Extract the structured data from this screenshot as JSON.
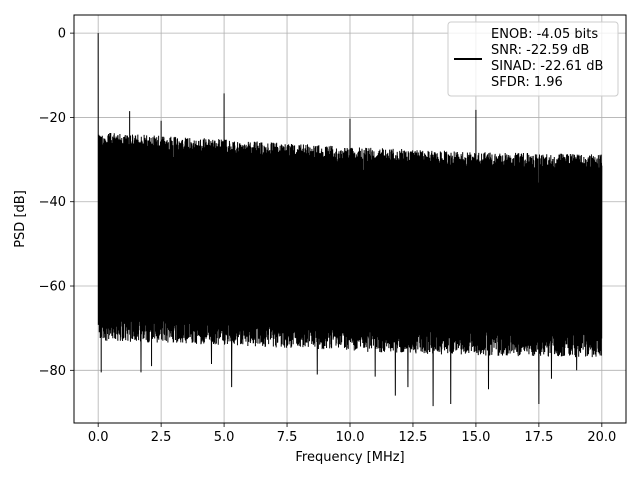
{
  "chart_data": {
    "type": "line",
    "xlabel": "Frequency [MHz]",
    "ylabel": "PSD [dB]",
    "xlim": [
      -0.96,
      20.96
    ],
    "ylim": [
      -92.5,
      4.3
    ],
    "x_ticks": [
      0.0,
      2.5,
      5.0,
      7.5,
      10.0,
      12.5,
      15.0,
      17.5,
      20.0
    ],
    "x_tick_labels": [
      "0.0",
      "2.5",
      "5.0",
      "7.5",
      "10.0",
      "12.5",
      "15.0",
      "17.5",
      "20.0"
    ],
    "y_ticks": [
      0,
      -20,
      -40,
      -60,
      -80
    ],
    "y_tick_labels": [
      "0",
      "−20",
      "−40",
      "−60",
      "−80"
    ],
    "grid": true,
    "legend_position": "top-right",
    "line_color": "#000000",
    "series": [
      {
        "name": "ENOB: -4.05 bits",
        "x_range": [
          0.0,
          20.0
        ],
        "noise_floor_top": [
          [
            0.0,
            -23.5
          ],
          [
            5.0,
            -25.2
          ],
          [
            10.0,
            -27.0
          ],
          [
            15.0,
            -28.2
          ],
          [
            20.0,
            -28.8
          ]
        ],
        "noise_floor_bottom": [
          [
            0.0,
            -70.0
          ],
          [
            5.0,
            -71.0
          ],
          [
            10.0,
            -72.5
          ],
          [
            15.0,
            -73.5
          ],
          [
            20.0,
            -74.0
          ]
        ],
        "peaks": [
          {
            "x": 0.0,
            "y": 0.0
          },
          {
            "x": 1.25,
            "y": -18.5
          },
          {
            "x": 2.5,
            "y": -20.8
          },
          {
            "x": 5.0,
            "y": -14.3
          },
          {
            "x": 10.0,
            "y": -20.3
          },
          {
            "x": 15.0,
            "y": -18.2
          }
        ],
        "dips": [
          {
            "x": 0.12,
            "y": -80.5
          },
          {
            "x": 1.7,
            "y": -80.5
          },
          {
            "x": 2.12,
            "y": -79.0
          },
          {
            "x": 4.5,
            "y": -78.5
          },
          {
            "x": 5.3,
            "y": -84.0
          },
          {
            "x": 8.7,
            "y": -81.0
          },
          {
            "x": 11.0,
            "y": -81.5
          },
          {
            "x": 11.8,
            "y": -86.0
          },
          {
            "x": 12.3,
            "y": -84.0
          },
          {
            "x": 13.3,
            "y": -88.5
          },
          {
            "x": 14.0,
            "y": -88.0
          },
          {
            "x": 15.5,
            "y": -84.5
          },
          {
            "x": 17.5,
            "y": -88.0
          },
          {
            "x": 18.0,
            "y": -82.0
          },
          {
            "x": 19.0,
            "y": -80.0
          }
        ]
      }
    ],
    "legend_lines": [
      "ENOB: -4.05 bits",
      "SNR: -22.59 dB",
      "SINAD: -22.61 dB",
      "SFDR: 1.96"
    ]
  }
}
